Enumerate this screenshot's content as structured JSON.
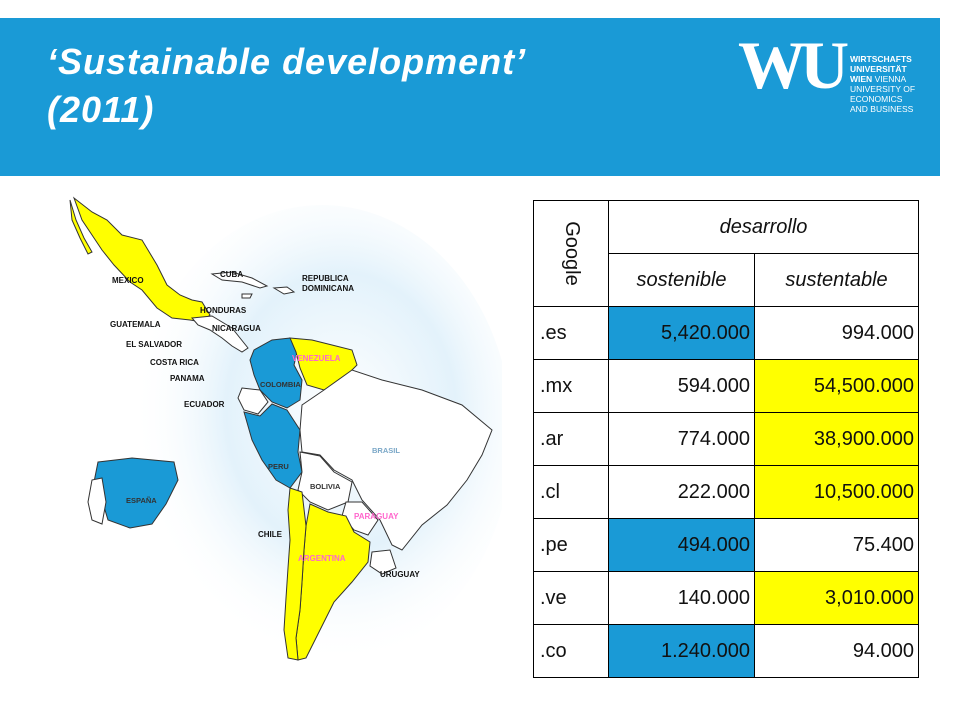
{
  "slide": {
    "title_line1": "‘Sustainable development’",
    "title_line2": "(2011)"
  },
  "logo": {
    "mark": "WU",
    "lines": [
      "WIRTSCHAFTS",
      "UNIVERSITÄT",
      "WIEN",
      "VIENNA",
      "UNIVERSITY OF",
      "ECONOMICS",
      "AND BUSINESS"
    ]
  },
  "map": {
    "labels": {
      "mexico": "MEXICO",
      "cuba": "CUBA",
      "republica": "REPUBLICA",
      "dominicana": "DOMINICANA",
      "honduras": "HONDURAS",
      "guatemala": "GUATEMALA",
      "nicaragua": "NICARAGUA",
      "el_salvador": "EL SALVADOR",
      "costa_rica": "COSTA RICA",
      "panama": "PANAMA",
      "venezuela": "VENEZUELA",
      "colombia": "COLOMBIA",
      "ecuador": "ECUADOR",
      "brasil": "BRASIL",
      "peru": "PERU",
      "bolivia": "BOLIVIA",
      "espana": "ESPAÑA",
      "paraguay": "PARAGUAY",
      "chile": "CHILE",
      "argentina": "ARGENTINA",
      "uruguay": "URUGUAY"
    },
    "colors": {
      "highlight_blue": "#1a9ad6",
      "highlight_yellow": "#ffff00",
      "other": "#ffffff"
    }
  },
  "table": {
    "side_label": "Google",
    "group_header": "desarrollo",
    "col_headers": [
      "sostenible",
      "sustentable"
    ],
    "rows": [
      {
        "tld": ".es",
        "sostenible": "5,420.000",
        "sustentable": "994.000",
        "highlight": "sostenible-blue"
      },
      {
        "tld": ".mx",
        "sostenible": "594.000",
        "sustentable": "54,500.000",
        "highlight": "sustentable-yellow"
      },
      {
        "tld": ".ar",
        "sostenible": "774.000",
        "sustentable": "38,900.000",
        "highlight": "sustentable-yellow"
      },
      {
        "tld": ".cl",
        "sostenible": "222.000",
        "sustentable": "10,500.000",
        "highlight": "sustentable-yellow"
      },
      {
        "tld": ".pe",
        "sostenible": "494.000",
        "sustentable": "75.400",
        "highlight": "sostenible-blue"
      },
      {
        "tld": ".ve",
        "sostenible": "140.000",
        "sustentable": "3,010.000",
        "highlight": "sustentable-yellow"
      },
      {
        "tld": ".co",
        "sostenible": "1.240.000",
        "sustentable": "94.000",
        "highlight": "sostenible-blue"
      }
    ]
  }
}
